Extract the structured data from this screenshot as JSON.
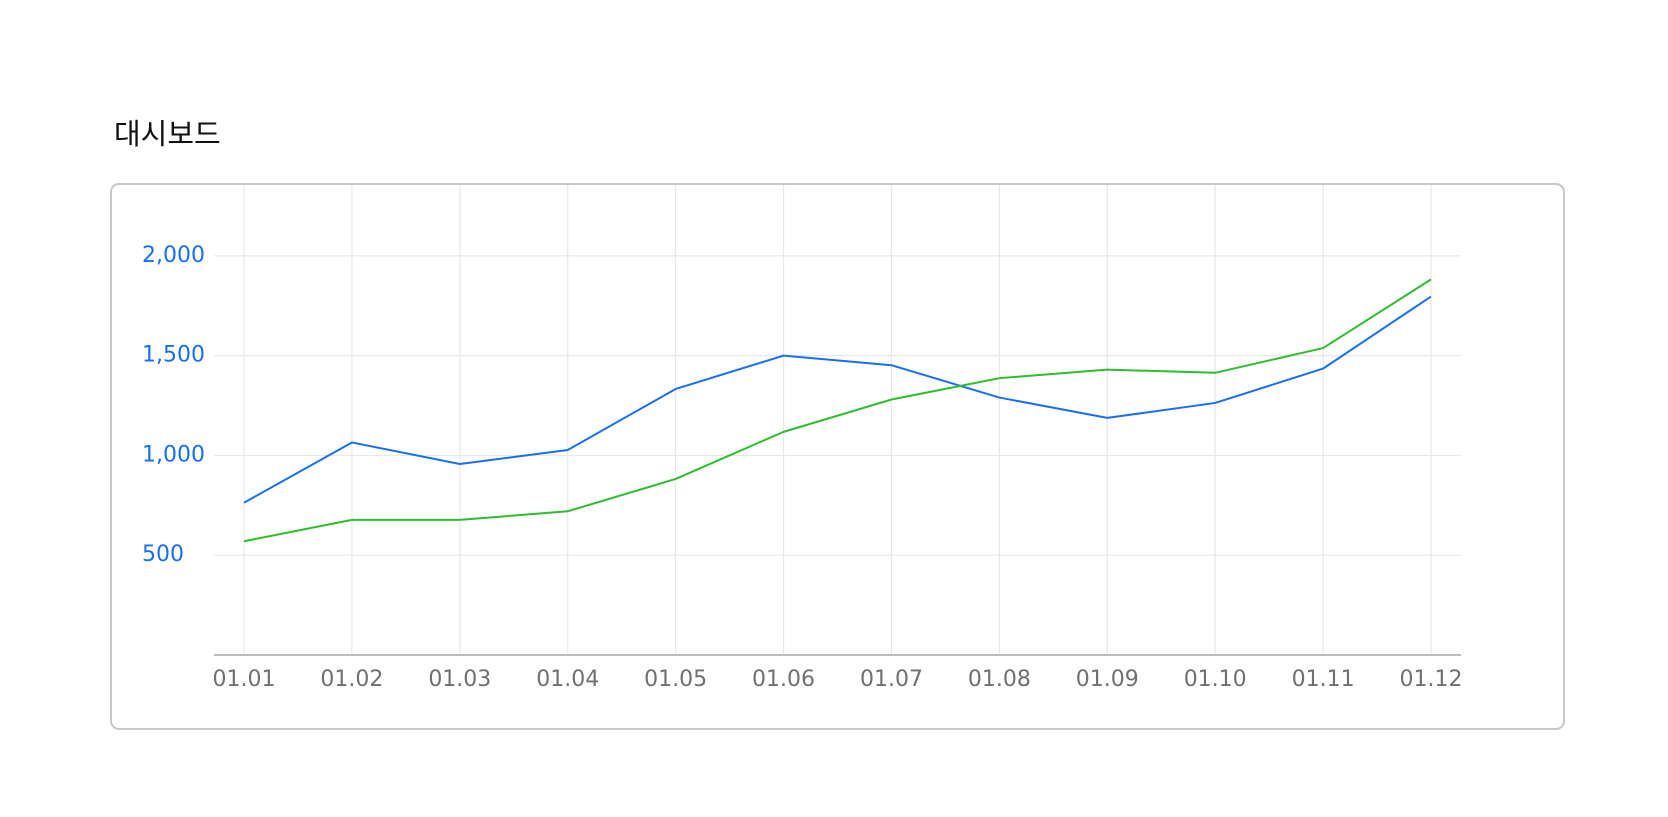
{
  "header": {
    "title": "대시보드"
  },
  "chart_data": {
    "type": "line",
    "categories": [
      "01.01",
      "01.02",
      "01.03",
      "01.04",
      "01.05",
      "01.06",
      "01.07",
      "01.08",
      "01.09",
      "01.10",
      "01.11",
      "01.12"
    ],
    "series": [
      {
        "color": "#1a6ef0",
        "values": [
          763,
          1065,
          957,
          1027,
          1333,
          1500,
          1452,
          1290,
          1188,
          1263,
          1435,
          1796
        ]
      },
      {
        "color": "#2dbd2d",
        "values": [
          570,
          677,
          677,
          720,
          882,
          1118,
          1280,
          1387,
          1430,
          1414,
          1538,
          1882
        ]
      }
    ],
    "ylim": [
      0,
      2360
    ],
    "yticks": [
      500,
      {
        "value": 1000,
        "label": "1,000"
      },
      {
        "value": 1500,
        "label": "1,500"
      },
      {
        "value": 2000,
        "label": "2,000"
      }
    ],
    "ytick_color": "#1a6ef0",
    "grid": true
  }
}
